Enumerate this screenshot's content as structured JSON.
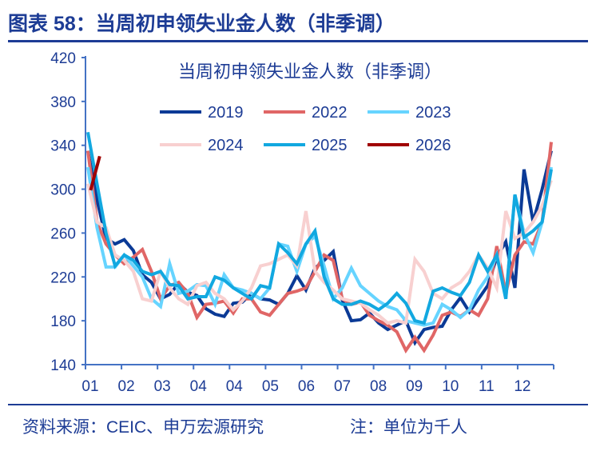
{
  "header": {
    "title": "图表 58：当周初申领失业金人数（非季调）"
  },
  "footer": {
    "source": "资料来源：CEIC、申万宏源研究",
    "note": "注：单位为千人"
  },
  "chart_data": {
    "type": "line",
    "title": "当周初申领失业金人数（非季调）",
    "xlabel": "",
    "ylabel": "",
    "ylim": [
      140,
      420
    ],
    "yticks": [
      140,
      180,
      220,
      260,
      300,
      340,
      380,
      420
    ],
    "xtick_labels": [
      "01",
      "02",
      "03",
      "04",
      "04",
      "05",
      "06",
      "07",
      "08",
      "09",
      "10",
      "11",
      "12"
    ],
    "x_unit": "week of year (1-52)",
    "grid": false,
    "legend": "top-center",
    "series": [
      {
        "name": "2019",
        "color": "#0b3a96",
        "values": [
          335,
          290,
          255,
          250,
          254,
          244,
          222,
          215,
          200,
          204,
          214,
          206,
          203,
          191,
          186,
          184,
          196,
          197,
          205,
          200,
          199,
          195,
          205,
          221,
          208,
          228,
          235,
          243,
          199,
          180,
          181,
          187,
          178,
          172,
          176,
          180,
          160,
          172,
          174,
          175,
          190,
          201,
          188,
          200,
          212,
          238,
          252,
          210,
          318,
          270,
          300,
          335
        ]
      },
      {
        "name": "2022",
        "color": "#e06666",
        "values": [
          335,
          270,
          250,
          240,
          232,
          238,
          245,
          225,
          200,
          212,
          215,
          205,
          183,
          195,
          196,
          198,
          187,
          200,
          200,
          188,
          185,
          195,
          205,
          207,
          210,
          225,
          240,
          235,
          200,
          195,
          197,
          185,
          180,
          176,
          170,
          153,
          165,
          153,
          167,
          185,
          188,
          184,
          190,
          185,
          200,
          248,
          205,
          240,
          252,
          250,
          270,
          343
        ]
      },
      {
        "name": "2023",
        "color": "#66d4ff",
        "values": [
          320,
          265,
          229,
          229,
          240,
          230,
          220,
          200,
          193,
          232,
          205,
          207,
          213,
          212,
          195,
          222,
          210,
          208,
          205,
          200,
          210,
          250,
          248,
          225,
          250,
          257,
          230,
          200,
          210,
          228,
          212,
          205,
          198,
          193,
          190,
          180,
          178,
          176,
          178,
          195,
          190,
          183,
          190,
          208,
          220,
          240,
          200,
          295,
          260,
          242,
          270,
          320
        ]
      },
      {
        "name": "2024",
        "color": "#f8d0d0",
        "values": [
          305,
          270,
          265,
          240,
          235,
          225,
          200,
          198,
          225,
          210,
          200,
          195,
          212,
          215,
          205,
          200,
          190,
          198,
          210,
          230,
          232,
          236,
          240,
          230,
          280,
          225,
          215,
          208,
          200,
          198,
          196,
          190,
          185,
          178,
          180,
          178,
          236,
          225,
          205,
          200,
          210,
          215,
          225,
          240,
          228,
          210,
          280,
          255,
          260,
          270,
          285,
          308
        ]
      },
      {
        "name": "2025",
        "color": "#12a8e0",
        "values": [
          352,
          305,
          260,
          230,
          240,
          235,
          225,
          222,
          225,
          213,
          212,
          200,
          202,
          202,
          220,
          217,
          210,
          205,
          200,
          212,
          210,
          250,
          242,
          232,
          250,
          262,
          220,
          200,
          195,
          195,
          198,
          195,
          190,
          196,
          205,
          196,
          180,
          178,
          207,
          210,
          206,
          203,
          215,
          240,
          225,
          240,
          200,
          295,
          256,
          262,
          270,
          318
        ]
      },
      {
        "name": "2026",
        "color": "#a00000",
        "values": [
          299,
          330
        ]
      }
    ]
  }
}
